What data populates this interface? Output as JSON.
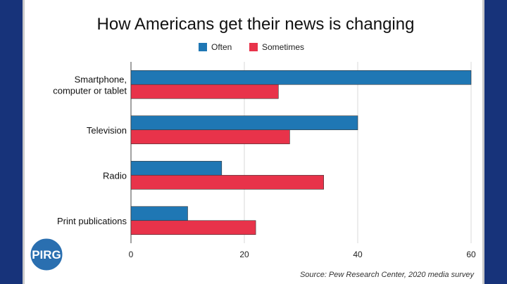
{
  "colors": {
    "often": "#1f77b4",
    "sometimes": "#e8334a",
    "background": "#17337a",
    "logo": "#2a6fb0"
  },
  "logo": {
    "text": "PIRG"
  },
  "source_note": "Source: Pew Research Center, 2020 media survey",
  "chart_data": {
    "type": "bar",
    "orientation": "horizontal",
    "title": "How Americans get their news is changing",
    "categories": [
      [
        "Smartphone,",
        "computer or tablet"
      ],
      [
        "Television"
      ],
      [
        "Radio"
      ],
      [
        "Print publications"
      ]
    ],
    "series": [
      {
        "name": "Often",
        "values": [
          60,
          40,
          16,
          10
        ]
      },
      {
        "name": "Sometimes",
        "values": [
          26,
          28,
          34,
          22
        ]
      }
    ],
    "xlim": [
      0,
      60
    ],
    "xticks": [
      "0",
      "20",
      "40",
      "60"
    ],
    "grid": true,
    "legend": "top-center",
    "xlabel": "",
    "ylabel": ""
  }
}
